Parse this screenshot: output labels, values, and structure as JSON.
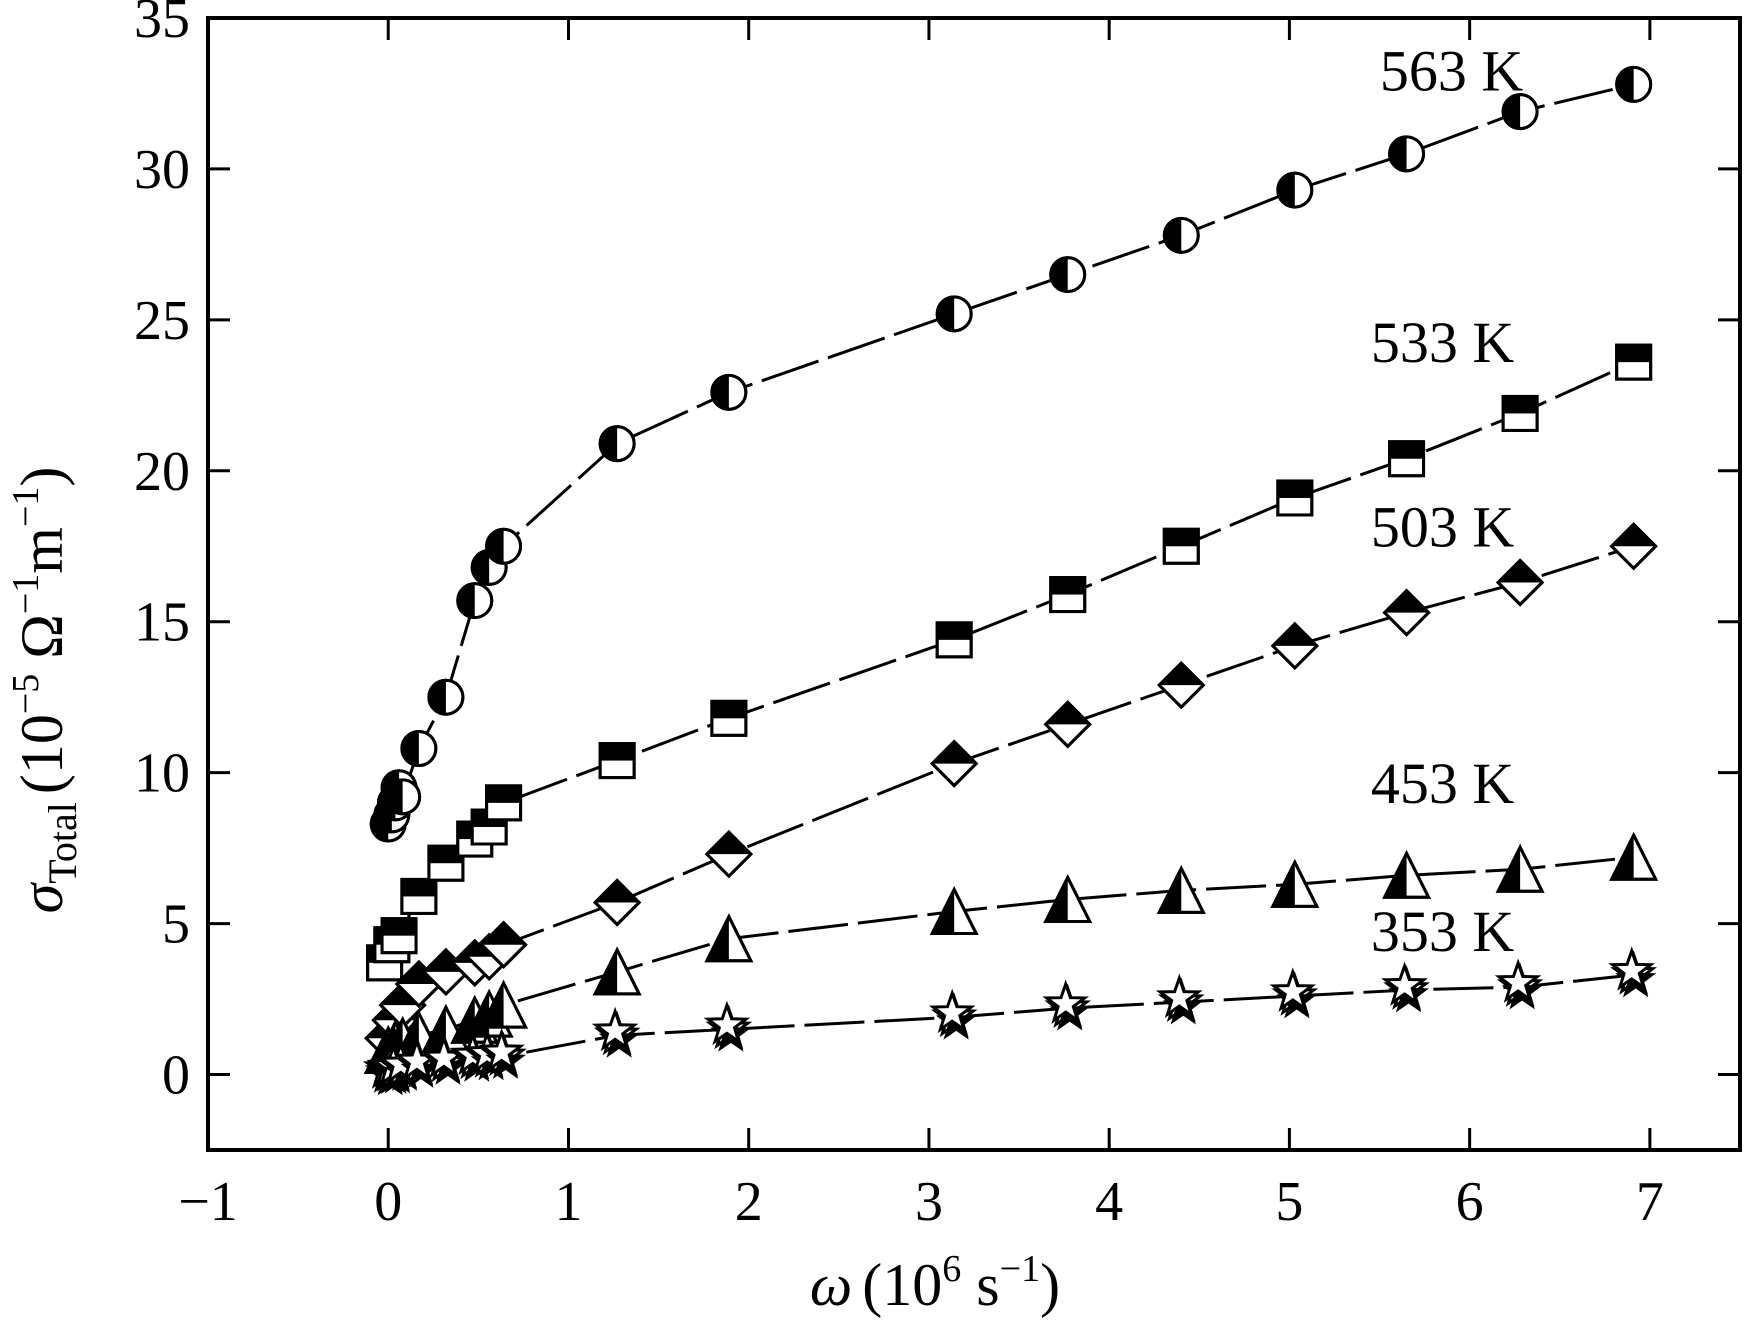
{
  "chart_data": {
    "type": "scatter",
    "title": "",
    "xlabel": {
      "symbol": "ω",
      "unit_open": "(10",
      "unit_exp": "6",
      "unit_mid": " s",
      "unit_exp2": "−1",
      "unit_close": ")"
    },
    "ylabel": {
      "symbol": "σ",
      "subscript": "Total",
      "unit_open": "(10",
      "unit_exp": "−5",
      "unit_mid": " Ω",
      "unit_exp2": "−1",
      "unit_mid2": "m",
      "unit_exp3": "−1",
      "unit_close": ")"
    },
    "xlim": [
      -1,
      7.5
    ],
    "ylim": [
      -2.5,
      35
    ],
    "x_ticks": [
      -1,
      0,
      1,
      2,
      3,
      4,
      5,
      6,
      7
    ],
    "x_tick_labels": [
      "−1",
      "0",
      "1",
      "2",
      "3",
      "4",
      "5",
      "6",
      "7"
    ],
    "y_ticks": [
      0,
      5,
      10,
      15,
      20,
      25,
      30,
      35
    ],
    "y_tick_labels": [
      "0",
      "5",
      "10",
      "15",
      "20",
      "25",
      "30",
      "35"
    ],
    "grid": false,
    "legend": "inline labels",
    "series": [
      {
        "name": "563 K",
        "marker": "circle-half-left",
        "label_pos": [
          5.9,
          32.6
        ],
        "x": [
          0.0,
          0.02,
          0.04,
          0.06,
          0.08,
          0.17,
          0.32,
          0.48,
          0.56,
          0.64,
          1.27,
          1.89,
          3.14,
          3.77,
          4.4,
          5.03,
          5.65,
          6.28,
          6.91
        ],
        "y": [
          8.3,
          8.6,
          9.0,
          9.5,
          9.2,
          10.8,
          12.5,
          15.7,
          16.8,
          17.5,
          20.9,
          22.6,
          25.2,
          26.5,
          27.8,
          29.3,
          30.5,
          31.9,
          32.8
        ]
      },
      {
        "name": "533 K",
        "marker": "square-half-top",
        "label_pos": [
          5.85,
          23.6
        ],
        "x": [
          -0.02,
          0.02,
          0.06,
          0.17,
          0.32,
          0.48,
          0.56,
          0.64,
          1.27,
          1.89,
          3.14,
          3.77,
          4.4,
          5.03,
          5.65,
          6.28,
          6.91
        ],
        "y": [
          3.7,
          4.3,
          4.6,
          5.9,
          7.0,
          7.8,
          8.2,
          9.0,
          10.4,
          11.8,
          14.4,
          15.9,
          17.5,
          19.1,
          20.4,
          21.9,
          23.6
        ]
      },
      {
        "name": "503 K",
        "marker": "diamond-half-top",
        "label_pos": [
          5.85,
          17.5
        ],
        "x": [
          0.0,
          0.04,
          0.08,
          0.17,
          0.32,
          0.48,
          0.56,
          0.64,
          1.27,
          1.89,
          3.14,
          3.77,
          4.4,
          5.03,
          5.65,
          6.28,
          6.91
        ],
        "y": [
          1.2,
          1.8,
          2.3,
          3.0,
          3.4,
          3.7,
          3.9,
          4.3,
          5.7,
          7.3,
          10.3,
          11.6,
          12.9,
          14.2,
          15.3,
          16.3,
          17.5
        ]
      },
      {
        "name": "453 K",
        "marker": "triangle-half-left",
        "label_pos": [
          5.85,
          9.0
        ],
        "x": [
          0.0,
          0.04,
          0.08,
          0.17,
          0.32,
          0.48,
          0.56,
          0.64,
          1.27,
          1.89,
          3.14,
          3.77,
          4.4,
          5.03,
          5.65,
          6.28,
          6.91
        ],
        "y": [
          0.8,
          1.0,
          1.1,
          1.3,
          1.5,
          1.8,
          2.0,
          2.3,
          3.4,
          4.5,
          5.4,
          5.8,
          6.1,
          6.3,
          6.6,
          6.8,
          7.2
        ]
      },
      {
        "name": "353 K",
        "marker": "star-half",
        "label_pos": [
          5.85,
          4.1
        ],
        "x": [
          0.0,
          0.02,
          0.04,
          0.08,
          0.17,
          0.32,
          0.48,
          0.56,
          0.64,
          1.27,
          1.89,
          3.14,
          3.77,
          4.4,
          5.03,
          5.65,
          6.28,
          6.91
        ],
        "y": [
          0.05,
          0.1,
          0.12,
          0.2,
          0.3,
          0.4,
          0.5,
          0.55,
          0.6,
          1.3,
          1.5,
          1.9,
          2.2,
          2.4,
          2.6,
          2.8,
          2.9,
          3.3
        ]
      }
    ]
  }
}
